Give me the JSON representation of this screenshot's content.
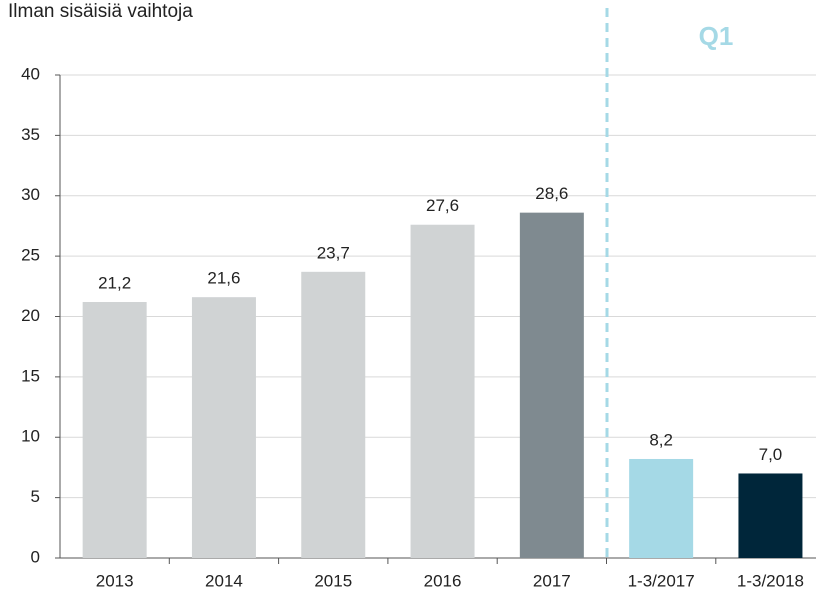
{
  "chart_data": {
    "type": "bar",
    "subtitle": "Ilman sisäisiä vaihtoja",
    "annotation": "Q1",
    "categories": [
      "2013",
      "2014",
      "2015",
      "2016",
      "2017",
      "1-3/2017",
      "1-3/2018"
    ],
    "values": [
      21.2,
      21.6,
      23.7,
      27.6,
      28.6,
      8.2,
      7.0
    ],
    "value_labels": [
      "21,2",
      "21,6",
      "23,7",
      "27,6",
      "28,6",
      "8,2",
      "7,0"
    ],
    "colors": [
      "#d0d3d4",
      "#d0d3d4",
      "#d0d3d4",
      "#d0d3d4",
      "#7f8a90",
      "#a5d9e6",
      "#00263a"
    ],
    "ylim": [
      0,
      40
    ],
    "yticks": [
      0,
      5,
      10,
      15,
      20,
      25,
      30,
      35,
      40
    ],
    "grid": true
  }
}
